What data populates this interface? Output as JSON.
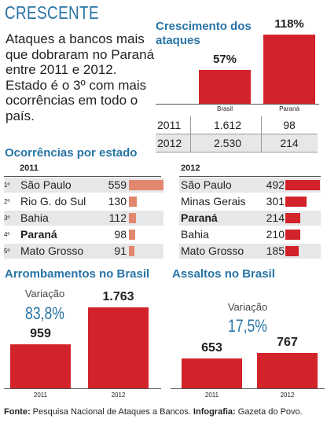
{
  "headline": "CRESCENTE",
  "intro": "Ataques a bancos mais que dobraram no Paraná entre 2011 e 2012. Estado é o 3º com mais ocorrências em todo o país.",
  "colors": {
    "accent": "#2874a6",
    "bar": "#d2232a",
    "bar_2011": "#e2876f",
    "row_shade": "#e6e7e8"
  },
  "chart_data": [
    {
      "type": "bar",
      "title": "Crescimento dos ataques",
      "categories": [
        "Brasil",
        "Paraná"
      ],
      "values": [
        57,
        118
      ],
      "value_labels": [
        "57%",
        "118%"
      ],
      "ylim": [
        0,
        118
      ]
    },
    {
      "type": "table",
      "columns": [
        "",
        "Brasil",
        "Paraná"
      ],
      "rows": [
        {
          "year": "2011",
          "brasil": "1.612",
          "parana": "98"
        },
        {
          "year": "2012",
          "brasil": "2.530",
          "parana": "214"
        }
      ]
    },
    {
      "type": "bar",
      "title": "Ocorrências por estado",
      "orientation": "horizontal",
      "year_2011": {
        "label": "2011",
        "ranks": [
          "1º",
          "2º",
          "3º",
          "4º",
          "5º"
        ],
        "states": [
          "São Paulo",
          "Rio G. do Sul",
          "Bahia",
          "Paraná",
          "Mato Grosso"
        ],
        "values": [
          559,
          130,
          112,
          98,
          91
        ],
        "value_labels": [
          "559",
          "130",
          "112",
          "98",
          "91"
        ],
        "highlight": [
          false,
          false,
          false,
          true,
          false
        ]
      },
      "year_2012": {
        "label": "2012",
        "states": [
          "São Paulo",
          "Minas Gerais",
          "Paraná",
          "Bahia",
          "Mato Grosso"
        ],
        "values": [
          492,
          301,
          214,
          210,
          185
        ],
        "value_labels": [
          "492",
          "301",
          "214",
          "210",
          "185"
        ],
        "highlight": [
          false,
          false,
          true,
          false,
          false
        ]
      }
    },
    {
      "type": "bar",
      "title": "Arrombamentos no Brasil",
      "categories": [
        "2011",
        "2012"
      ],
      "values": [
        959,
        1763
      ],
      "value_labels": [
        "959",
        "1.763"
      ],
      "variation_label": "Variação",
      "variation_value": "83,8%"
    },
    {
      "type": "bar",
      "title": "Assaltos no Brasil",
      "categories": [
        "2011",
        "2012"
      ],
      "values": [
        653,
        767
      ],
      "value_labels": [
        "653",
        "767"
      ],
      "variation_label": "Variação",
      "variation_value": "17,5%"
    }
  ],
  "footer": {
    "source_label": "Fonte:",
    "source_text": " Pesquisa Nacional de Ataques a Bancos. ",
    "credit_label": "Infografia:",
    "credit_text": " Gazeta do Povo."
  }
}
